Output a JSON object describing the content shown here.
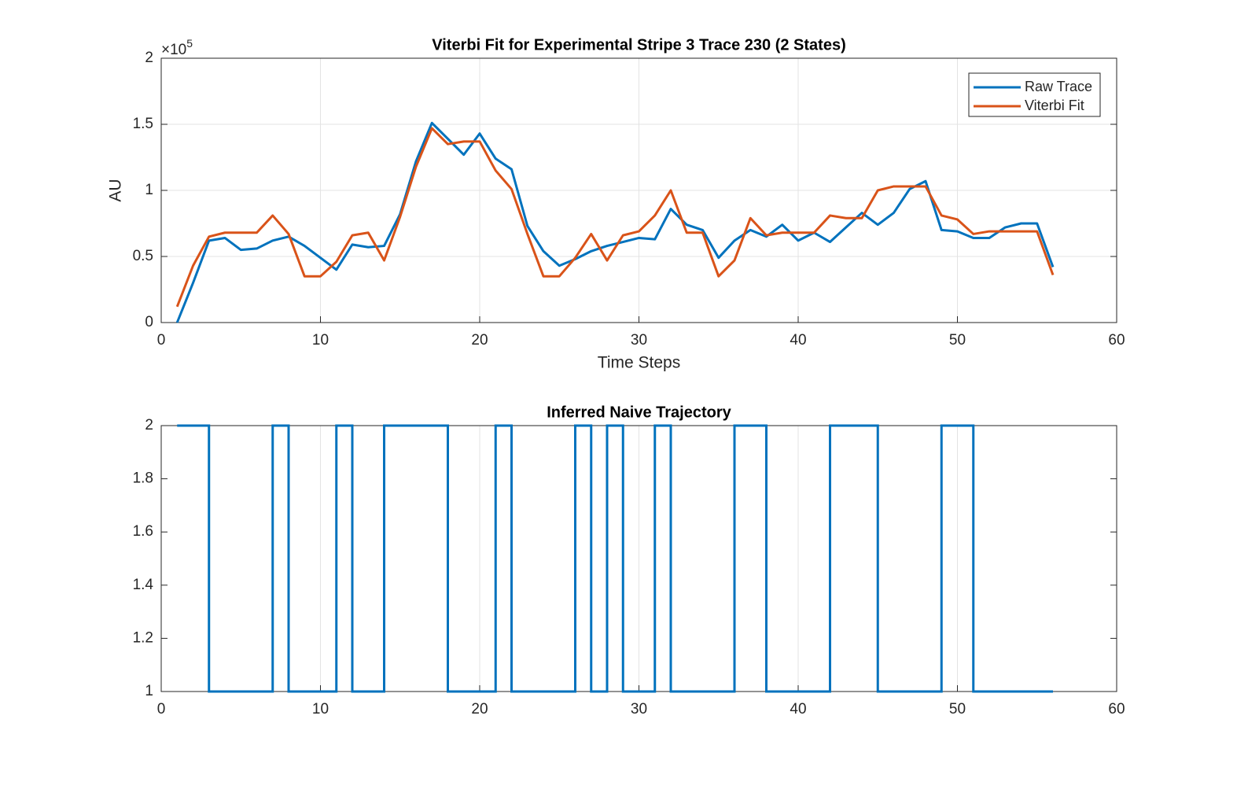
{
  "chart_data": [
    {
      "type": "line",
      "title": "Viterbi Fit for Experimental Stripe 3 Trace 230 (2 States)",
      "x_label": "Time Steps",
      "y_label": "AU",
      "y_multiplier": "×10",
      "y_exponent": "5",
      "x": [
        1,
        2,
        3,
        4,
        5,
        6,
        7,
        8,
        9,
        10,
        11,
        12,
        13,
        14,
        15,
        16,
        17,
        18,
        19,
        20,
        21,
        22,
        23,
        24,
        25,
        26,
        27,
        28,
        29,
        30,
        31,
        32,
        33,
        34,
        35,
        36,
        37,
        38,
        39,
        40,
        41,
        42,
        43,
        44,
        45,
        46,
        47,
        48,
        49,
        50,
        51,
        52,
        53,
        54,
        55,
        56
      ],
      "series": [
        {
          "name": "Raw Trace",
          "color": "#0072BD",
          "values": [
            0,
            0.3,
            0.62,
            0.64,
            0.55,
            0.56,
            0.62,
            0.65,
            0.58,
            0.49,
            0.4,
            0.59,
            0.57,
            0.58,
            0.82,
            1.22,
            1.51,
            1.39,
            1.27,
            1.43,
            1.24,
            1.16,
            0.73,
            0.54,
            0.43,
            0.48,
            0.54,
            0.58,
            0.61,
            0.64,
            0.63,
            0.86,
            0.74,
            0.7,
            0.49,
            0.62,
            0.7,
            0.65,
            0.74,
            0.62,
            0.68,
            0.61,
            0.72,
            0.83,
            0.74,
            0.83,
            1.01,
            1.07,
            0.7,
            0.69,
            0.64,
            0.64,
            0.72,
            0.75,
            0.75,
            0.42
          ]
        },
        {
          "name": "Viterbi Fit",
          "color": "#D95319",
          "values": [
            0.12,
            0.43,
            0.65,
            0.68,
            0.68,
            0.68,
            0.81,
            0.67,
            0.35,
            0.35,
            0.46,
            0.66,
            0.68,
            0.47,
            0.8,
            1.18,
            1.47,
            1.35,
            1.37,
            1.37,
            1.15,
            1.01,
            0.67,
            0.35,
            0.35,
            0.49,
            0.67,
            0.47,
            0.66,
            0.69,
            0.81,
            1.0,
            0.68,
            0.68,
            0.35,
            0.47,
            0.79,
            0.66,
            0.68,
            0.68,
            0.68,
            0.81,
            0.79,
            0.79,
            1.0,
            1.03,
            1.03,
            1.03,
            0.81,
            0.78,
            0.67,
            0.69,
            0.69,
            0.69,
            0.69,
            0.36
          ]
        }
      ],
      "xlim": [
        0,
        60
      ],
      "xticks": [
        0,
        10,
        20,
        30,
        40,
        50,
        60
      ],
      "ylim": [
        0,
        2
      ],
      "yticks": [
        0,
        0.5,
        1,
        1.5,
        2
      ],
      "grid": "both",
      "legend": "top-right"
    },
    {
      "type": "stairs",
      "title": "Inferred Naive Trajectory",
      "x": [
        1,
        2,
        3,
        4,
        5,
        6,
        7,
        8,
        9,
        10,
        11,
        12,
        13,
        14,
        15,
        16,
        17,
        18,
        19,
        20,
        21,
        22,
        23,
        24,
        25,
        26,
        27,
        28,
        29,
        30,
        31,
        32,
        33,
        34,
        35,
        36,
        37,
        38,
        39,
        40,
        41,
        42,
        43,
        44,
        45,
        46,
        47,
        48,
        49,
        50,
        51,
        52,
        53,
        54,
        55,
        56
      ],
      "values": [
        2,
        2,
        1,
        1,
        1,
        1,
        2,
        1,
        1,
        1,
        2,
        1,
        1,
        2,
        2,
        2,
        2,
        1,
        1,
        1,
        2,
        1,
        1,
        1,
        1,
        2,
        1,
        2,
        1,
        1,
        2,
        1,
        1,
        1,
        1,
        2,
        2,
        1,
        1,
        1,
        1,
        2,
        2,
        2,
        1,
        1,
        1,
        1,
        2,
        2,
        1,
        1,
        1,
        1,
        1,
        1
      ],
      "color": "#0072BD",
      "xlim": [
        0,
        60
      ],
      "xticks": [
        0,
        10,
        20,
        30,
        40,
        50,
        60
      ],
      "ylim": [
        1,
        2
      ],
      "yticks": [
        1,
        1.2,
        1.4,
        1.6,
        1.8,
        2
      ],
      "grid": "x"
    }
  ]
}
